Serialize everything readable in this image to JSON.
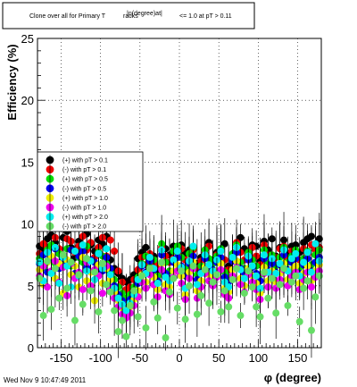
{
  "title_box": {
    "prefix": "Clone  over all for Primary T",
    "overlap": "racks",
    "middle": "|η(degree)at|",
    "suffix": "<= 1.0 at pT > 0.11"
  },
  "footer": {
    "timestamp": "Wed Nov  9 10:47:49 2011"
  },
  "chart_data": {
    "type": "scatter",
    "xlabel": "φ (degree)",
    "ylabel": "Efficiency (%)",
    "xlim": [
      -180,
      180
    ],
    "ylim": [
      0,
      25
    ],
    "xticks": [
      -150,
      -100,
      -50,
      0,
      50,
      100,
      150
    ],
    "yticks": [
      0,
      5,
      10,
      15,
      20,
      25
    ],
    "grid": true,
    "legend_position": "center-left",
    "series": [
      {
        "name": "(+) with pT > 0.1",
        "color": "#000000",
        "seed": 11,
        "values": [
          8.2,
          7.9,
          8.8,
          9.1,
          8.5,
          7.6,
          8.9,
          9.4,
          8.1,
          7.3,
          8.6,
          8.0,
          9.2,
          8.3,
          7.8,
          8.7,
          8.4,
          9.0,
          7.1,
          6.4,
          6.0,
          5.6,
          5.3,
          5.5,
          5.9,
          7.2,
          7.7,
          8.1,
          6.9,
          7.4,
          6.2,
          7.9,
          8.0,
          7.5,
          8.2,
          7.8,
          8.3,
          7.6,
          7.9,
          8.1,
          6.8,
          7.3,
          7.9,
          8.5,
          7.1,
          7.7,
          8.0,
          8.4,
          6.6,
          7.2,
          7.8,
          8.9,
          8.0,
          7.5,
          8.3,
          8.2,
          7.0,
          8.6,
          7.9,
          8.8,
          7.4,
          8.1,
          8.7,
          7.6,
          8.2,
          8.3,
          7.7,
          8.5,
          8.8,
          9.0,
          8.4,
          8.8
        ]
      },
      {
        "name": "(-) with pT > 0.1",
        "color": "#ee0000",
        "seed": 23,
        "values": [
          7.6,
          8.4,
          8.1,
          7.2,
          8.9,
          8.0,
          7.5,
          8.8,
          8.6,
          7.7,
          8.2,
          9.0,
          7.9,
          8.5,
          7.3,
          8.1,
          8.9,
          7.4,
          8.7,
          7.8,
          6.2,
          5.3,
          4.7,
          4.9,
          5.5,
          6.3,
          7.3,
          6.7,
          7.6,
          7.0,
          6.6,
          8.1,
          7.4,
          6.9,
          7.2,
          7.7,
          8.0,
          7.1,
          6.5,
          7.9,
          6.4,
          7.0,
          7.6,
          8.2,
          6.9,
          7.5,
          7.8,
          7.1,
          6.3,
          7.3,
          8.5,
          7.7,
          7.1,
          7.6,
          8.1,
          7.4,
          6.7,
          8.3,
          7.5,
          7.0,
          7.3,
          8.0,
          8.2,
          7.2,
          7.8,
          7.5,
          7.1,
          8.0,
          7.6,
          8.3,
          7.9,
          8.1
        ]
      },
      {
        "name": "(+) with pT > 0.5",
        "color": "#00dd00",
        "seed": 37,
        "values": [
          7.2,
          6.5,
          7.9,
          8.3,
          6.8,
          7.6,
          7.1,
          8.0,
          6.6,
          7.8,
          7.3,
          6.9,
          8.2,
          7.0,
          6.3,
          7.7,
          7.4,
          6.8,
          6.1,
          5.5,
          4.9,
          4.4,
          4.0,
          4.3,
          4.9,
          5.7,
          6.8,
          7.4,
          6.5,
          7.1,
          5.8,
          8.4,
          6.9,
          6.2,
          7.8,
          8.2,
          7.3,
          6.4,
          7.6,
          8.1,
          5.9,
          6.6,
          7.9,
          7.2,
          6.8,
          7.4,
          8.0,
          6.1,
          5.7,
          7.6,
          8.3,
          6.9,
          6.4,
          7.7,
          7.1,
          6.6,
          5.9,
          7.9,
          6.8,
          7.5,
          6.6,
          7.3,
          8.1,
          6.9,
          7.4,
          7.9,
          6.5,
          7.2,
          7.8,
          6.7,
          7.5,
          7.9
        ]
      },
      {
        "name": "(-) with pT > 0.5",
        "color": "#0000ee",
        "seed": 41,
        "values": [
          6.8,
          7.5,
          6.1,
          7.3,
          8.0,
          6.4,
          7.2,
          6.7,
          7.9,
          6.0,
          7.4,
          7.8,
          6.5,
          7.1,
          6.9,
          7.6,
          6.2,
          7.3,
          6.4,
          5.0,
          4.3,
          3.8,
          3.4,
          3.9,
          4.5,
          5.2,
          6.6,
          6.1,
          7.0,
          6.3,
          5.4,
          7.5,
          6.0,
          5.6,
          6.9,
          7.3,
          6.6,
          5.8,
          6.8,
          7.4,
          5.5,
          6.1,
          7.2,
          6.6,
          6.3,
          6.9,
          7.3,
          5.7,
          5.3,
          7.0,
          7.7,
          6.4,
          5.9,
          7.1,
          6.5,
          6.0,
          5.4,
          7.2,
          6.3,
          6.8,
          6.1,
          6.7,
          7.5,
          6.3,
          6.9,
          7.2,
          6.0,
          6.7,
          7.2,
          6.2,
          6.9,
          7.3
        ]
      },
      {
        "name": "(+) with pT > 1.0",
        "color": "#eeee00",
        "seed": 53,
        "values": [
          6.3,
          5.1,
          6.9,
          7.4,
          5.6,
          6.8,
          4.4,
          7.1,
          5.9,
          6.6,
          4.9,
          7.3,
          5.4,
          6.1,
          3.8,
          6.7,
          5.2,
          6.4,
          5.5,
          4.5,
          3.8,
          3.2,
          2.9,
          3.3,
          3.9,
          4.6,
          5.9,
          5.3,
          6.4,
          5.7,
          4.7,
          6.8,
          5.1,
          4.9,
          6.2,
          6.7,
          5.8,
          4.3,
          6.1,
          6.9,
          4.6,
          5.4,
          6.5,
          5.9,
          5.5,
          6.2,
          6.8,
          4.8,
          4.5,
          6.3,
          7.0,
          5.6,
          5.0,
          6.4,
          5.8,
          5.2,
          4.4,
          6.5,
          5.4,
          6.2,
          5.3,
          6.0,
          6.8,
          5.5,
          6.3,
          6.6,
          5.2,
          6.0,
          6.6,
          5.4,
          6.2,
          6.7
        ]
      },
      {
        "name": "(-) with pT > 1.0",
        "color": "#ee00ee",
        "seed": 67,
        "values": [
          5.8,
          6.6,
          4.9,
          6.2,
          7.0,
          5.3,
          6.5,
          4.2,
          6.8,
          5.6,
          6.1,
          4.7,
          6.9,
          5.0,
          6.3,
          5.8,
          4.4,
          6.6,
          4.8,
          4.0,
          3.3,
          2.7,
          2.4,
          2.8,
          3.4,
          4.1,
          5.3,
          4.8,
          5.9,
          5.1,
          4.1,
          6.3,
          4.6,
          4.3,
          5.7,
          6.2,
          5.2,
          3.9,
          5.6,
          6.4,
          4.0,
          4.9,
          6.0,
          5.4,
          5.0,
          5.7,
          6.3,
          4.3,
          4.0,
          5.8,
          6.5,
          5.1,
          4.5,
          5.9,
          5.3,
          4.7,
          3.9,
          6.0,
          4.9,
          5.7,
          4.8,
          5.5,
          6.3,
          5.0,
          5.8,
          6.1,
          4.7,
          5.5,
          6.1,
          4.9,
          5.7,
          6.2
        ]
      },
      {
        "name": "(+) with pT > 2.0",
        "color": "#00eeee",
        "seed": 79,
        "values": [
          6.9,
          5.4,
          7.7,
          6.0,
          8.1,
          5.2,
          7.3,
          6.6,
          4.9,
          7.8,
          5.8,
          8.3,
          6.2,
          7.0,
          5.5,
          7.6,
          6.4,
          8.0,
          5.9,
          4.8,
          4.0,
          3.5,
          3.0,
          3.6,
          4.3,
          5.5,
          6.7,
          6.0,
          7.3,
          6.4,
          5.2,
          7.9,
          5.7,
          5.4,
          7.1,
          7.8,
          6.5,
          4.8,
          7.0,
          8.2,
          5.1,
          6.0,
          7.5,
          6.7,
          6.2,
          7.1,
          7.8,
          5.3,
          4.9,
          7.3,
          8.1,
          6.3,
          5.6,
          7.4,
          6.6,
          5.8,
          4.8,
          7.5,
          6.1,
          7.2,
          6.0,
          6.8,
          7.9,
          6.2,
          7.2,
          7.6,
          5.8,
          6.9,
          7.7,
          6.1,
          8.4,
          7.0
        ]
      },
      {
        "name": "(-) with pT > 2.0",
        "color": "#66dd66",
        "seed": 97,
        "values": [
          5.6,
          2.6,
          7.0,
          3.1,
          6.4,
          4.0,
          7.5,
          4.8,
          6.9,
          2.2,
          5.9,
          3.5,
          7.2,
          4.6,
          6.1,
          2.9,
          6.8,
          5.1,
          4.5,
          3.0,
          1.3,
          2.2,
          0.9,
          3.4,
          4.6,
          2.5,
          5.8,
          1.6,
          6.4,
          3.7,
          2.4,
          6.9,
          0.8,
          4.5,
          5.6,
          3.2,
          6.2,
          2.3,
          5.0,
          6.6,
          2.7,
          4.2,
          6.3,
          3.6,
          5.3,
          5.9,
          2.9,
          4.6,
          3.3,
          5.5,
          6.4,
          2.6,
          4.4,
          6.2,
          4.9,
          3.3,
          2.5,
          6.1,
          4.0,
          5.6,
          2.8,
          5.1,
          6.4,
          3.4,
          5.3,
          5.8,
          2.1,
          4.8,
          5.4,
          1.4,
          4.1,
          5.8
        ]
      }
    ]
  }
}
